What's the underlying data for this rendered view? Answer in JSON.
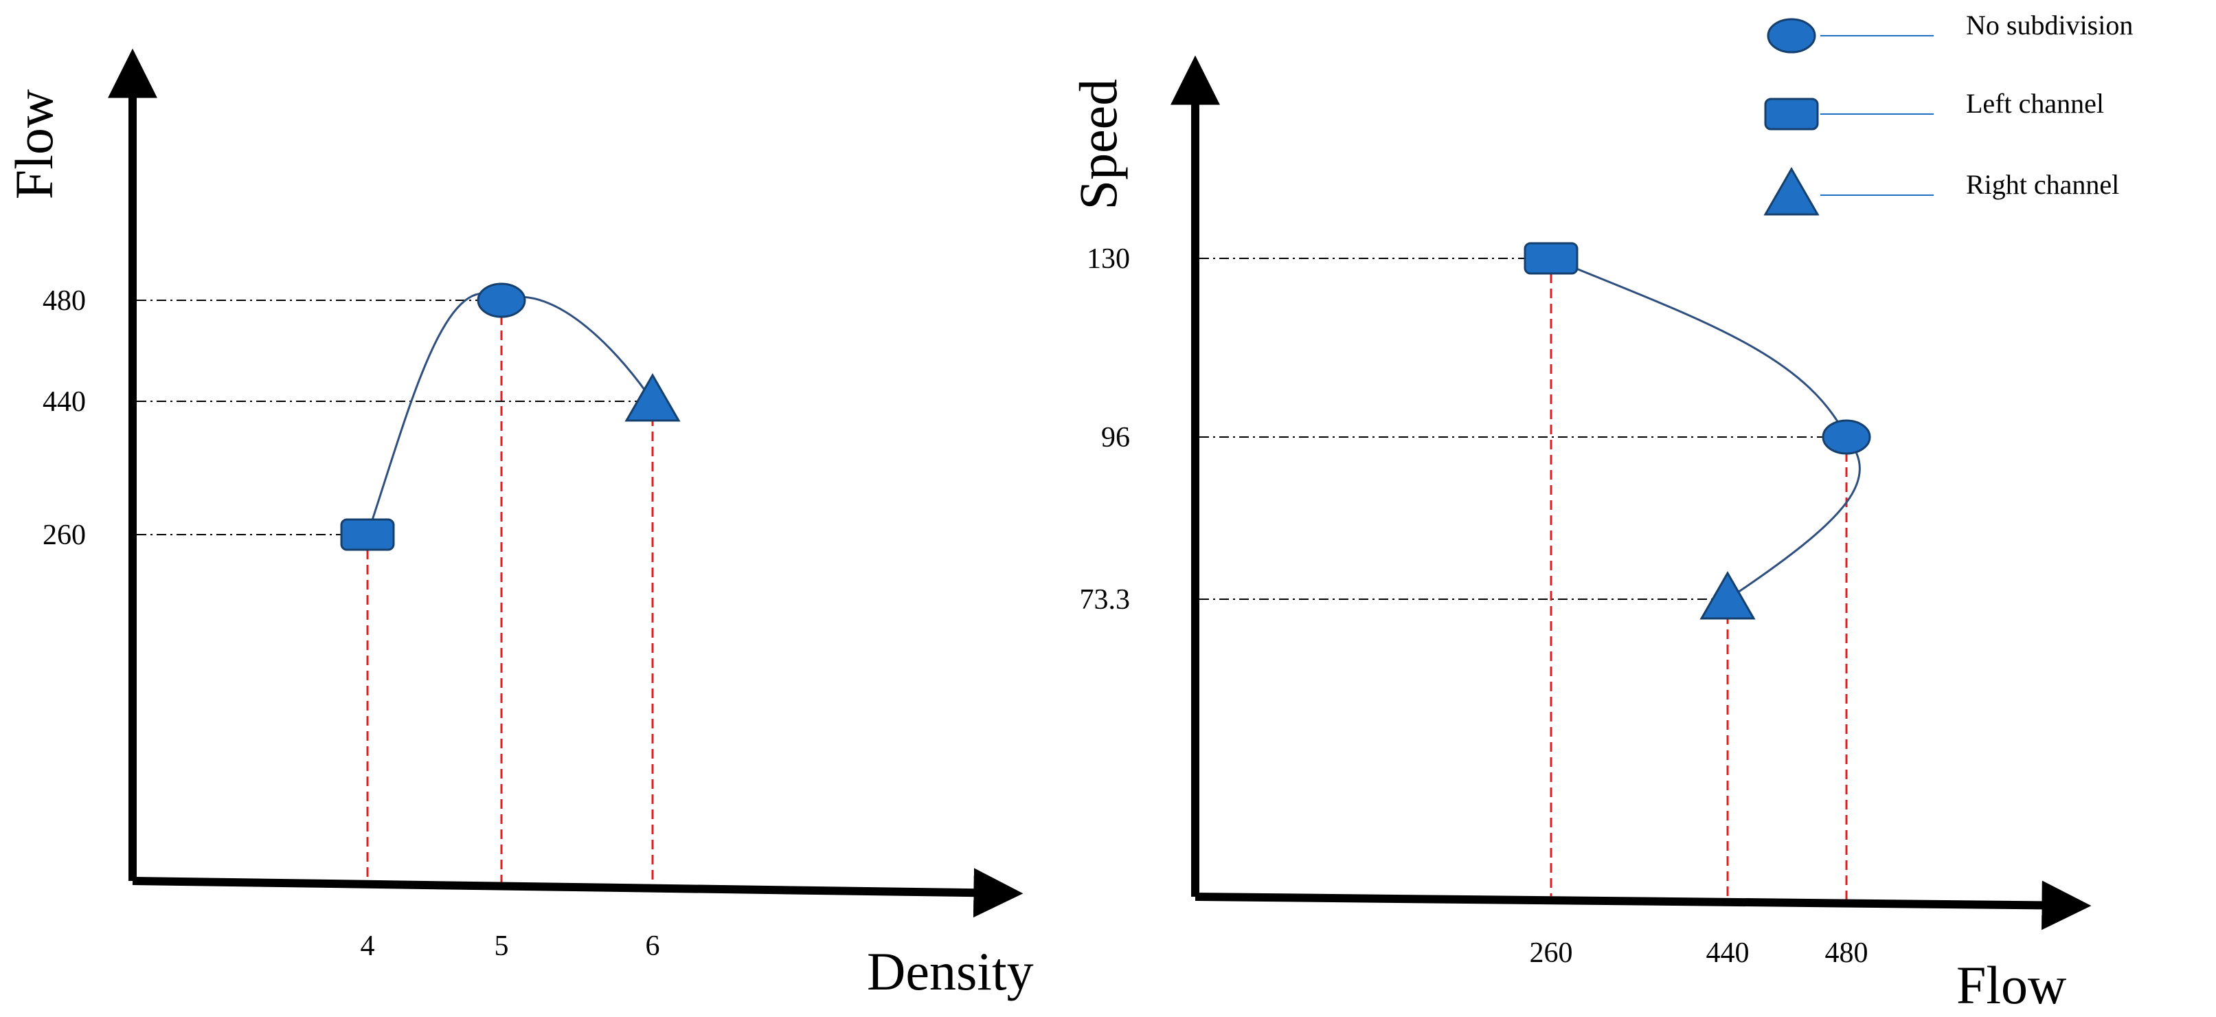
{
  "colors": {
    "marker_fill": "#1f6fc5",
    "marker_stroke": "#15406e",
    "curve": "#2f4f7f",
    "axis": "#000000",
    "guide_horizontal": "#000000",
    "guide_vertical": "#e02020"
  },
  "legend": {
    "position": "top-right",
    "items": [
      {
        "marker": "circle",
        "label": "No subdivision"
      },
      {
        "marker": "square",
        "label": "Left channel"
      },
      {
        "marker": "triangle",
        "label": "Right channel"
      }
    ]
  },
  "chart_data": [
    {
      "type": "line",
      "xlabel": "Density",
      "ylabel": "Flow",
      "x_ticks": [
        "4",
        "5",
        "6"
      ],
      "y_ticks": [
        "260",
        "440",
        "480"
      ],
      "points": [
        {
          "series": "Left channel",
          "marker": "square",
          "x": 4,
          "y": 260
        },
        {
          "series": "No subdivision",
          "marker": "circle",
          "x": 5,
          "y": 480
        },
        {
          "series": "Right channel",
          "marker": "triangle",
          "x": 6,
          "y": 440
        }
      ],
      "curve_order": [
        "Left channel",
        "No subdivision",
        "Right channel"
      ],
      "grid": false
    },
    {
      "type": "line",
      "xlabel": "Flow",
      "ylabel": "Speed",
      "x_ticks": [
        "260",
        "440",
        "480"
      ],
      "y_ticks": [
        "73.3",
        "96",
        "130"
      ],
      "points": [
        {
          "series": "Left channel",
          "marker": "square",
          "x": 260,
          "y": 130
        },
        {
          "series": "No subdivision",
          "marker": "circle",
          "x": 480,
          "y": 96
        },
        {
          "series": "Right channel",
          "marker": "triangle",
          "x": 440,
          "y": 73.3
        }
      ],
      "curve_order": [
        "Left channel",
        "No subdivision",
        "Right channel"
      ],
      "grid": false
    }
  ]
}
